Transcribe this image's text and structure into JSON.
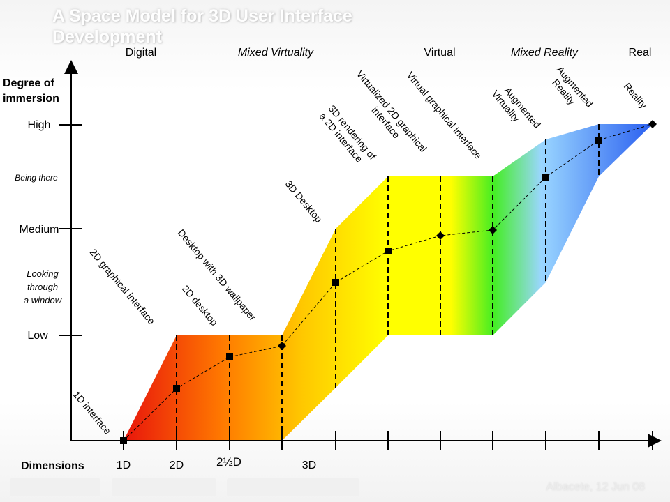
{
  "slide": {
    "title": "A Space Model for 3D User Interface Development",
    "footer_date": "Albacete, 12 Jun 08"
  },
  "diagram": {
    "top_categories": [
      {
        "label": "Digital",
        "italic": false
      },
      {
        "label": "Mixed Virtuality",
        "italic": true
      },
      {
        "label": "Virtual",
        "italic": false
      },
      {
        "label": "Mixed Reality",
        "italic": true
      },
      {
        "label": "Real",
        "italic": false
      }
    ],
    "y_axis": {
      "title_line1": "Degree of",
      "title_line2": "immersion",
      "levels": [
        "High",
        "Medium",
        "Low"
      ],
      "bands": [
        [
          "Being there"
        ],
        [
          "Looking",
          "through",
          "a window"
        ]
      ]
    },
    "x_axis": {
      "title": "Dimensions",
      "ticks": [
        "1D",
        "2D",
        "2½D",
        "3D"
      ]
    },
    "stages": [
      {
        "lines": [
          "1D interface"
        ],
        "marker": "square"
      },
      {
        "lines": [
          "2D graphical interface"
        ],
        "marker": "square"
      },
      {
        "lines": [
          "2D desktop"
        ],
        "marker": "square"
      },
      {
        "lines": [
          "Desktop with 3D wallpaper"
        ],
        "marker": "diamond"
      },
      {
        "lines": [
          "3D Desktop"
        ],
        "marker": "square"
      },
      {
        "lines": [
          "3D rendering of",
          "a 2D interface"
        ],
        "marker": "square"
      },
      {
        "lines": [
          "Virtualized 2D graphical",
          "interface"
        ],
        "marker": "diamond"
      },
      {
        "lines": [
          "Virtual graphical interface"
        ],
        "marker": "diamond"
      },
      {
        "lines": [
          "Augmented",
          "Virtuality"
        ],
        "marker": "square"
      },
      {
        "lines": [
          "Augmented",
          "Reality"
        ],
        "marker": "square"
      },
      {
        "lines": [
          "Reality"
        ],
        "marker": "diamond"
      }
    ]
  },
  "colors": {
    "gradient": [
      "#e8140c",
      "#ff7a00",
      "#ffc800",
      "#ffff00",
      "#44ee22",
      "#9ad6ff",
      "#2a5ff0"
    ]
  }
}
